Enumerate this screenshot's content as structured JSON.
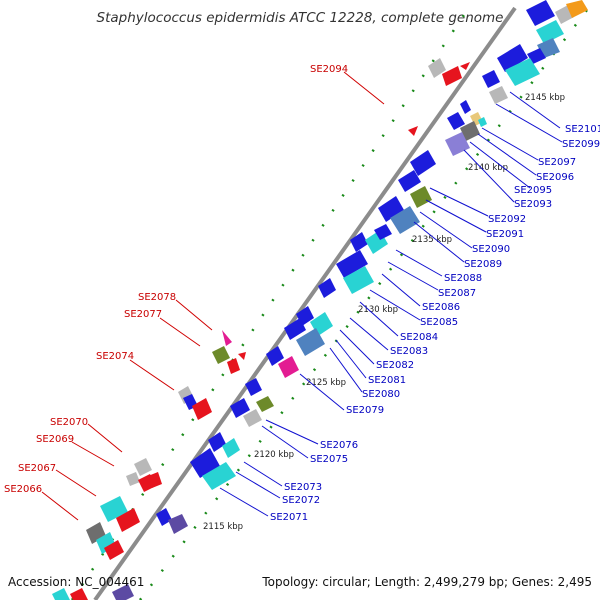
{
  "title": "Staphylococcus epidermidis ATCC 12228, complete genome",
  "footer": {
    "accession": "Accession: NC_004461",
    "stats": "Topology: circular; Length: 2,499,279 bp; Genes: 2,495"
  },
  "colors": {
    "backbone": "#8c8c8c",
    "forward": "#1c1cdc",
    "cyan": "#29d3d3",
    "steel": "#4f82bf",
    "olive": "#6d8a2a",
    "grey": "#b8b8b8",
    "darkgrey": "#6e6e6e",
    "red": "#e6141e",
    "magenta": "#e31c92",
    "purple": "#5c4aa3",
    "lavender": "#8a7fd6",
    "orange": "#f39a1a",
    "tick": "#1a8a1a",
    "label_left": "#c80000",
    "label_right": "#0000c0"
  },
  "kbp_labels": [
    "2145 kbp",
    "2140 kbp",
    "2135 kbp",
    "2130 kbp",
    "2125 kbp",
    "2120 kbp",
    "2115 kbp"
  ],
  "labels_left": [
    "SE2094",
    "SE2078",
    "SE2077",
    "SE2074",
    "SE2070",
    "SE2069",
    "SE2067",
    "SE2066"
  ],
  "labels_right": [
    "SE2101",
    "SE2099",
    "SE2097",
    "SE2096",
    "SE2095",
    "SE2093",
    "SE2092",
    "SE2091",
    "SE2090",
    "SE2089",
    "SE2088",
    "SE2087",
    "SE2086",
    "SE2085",
    "SE2084",
    "SE2083",
    "SE2082",
    "SE2081",
    "SE2080",
    "SE2079",
    "SE2076",
    "SE2075",
    "SE2073",
    "SE2072",
    "SE2071"
  ]
}
